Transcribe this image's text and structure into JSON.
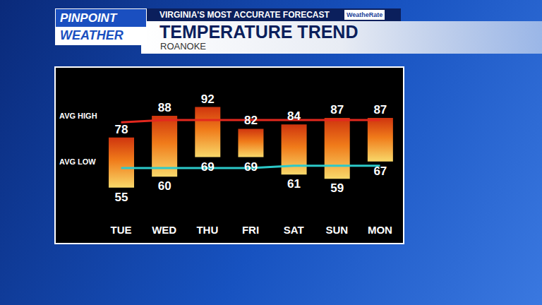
{
  "header": {
    "logo": [
      "PINPOINT",
      "WEATHER"
    ],
    "tagline": "VIRGINIA'S MOST ACCURATE FORECAST",
    "badge": "WeatheRate"
  },
  "chart_data": {
    "type": "range_bar",
    "title": "TEMPERATURE TREND",
    "subtitle": "ROANOKE",
    "categories": [
      "TUE",
      "WED",
      "THU",
      "FRI",
      "SAT",
      "SUN",
      "MON"
    ],
    "ylim": [
      40,
      110
    ],
    "tick_labels": "x",
    "grid": false,
    "data_labels": true,
    "series": [
      {
        "type": "bar",
        "color": "#f07b1a",
        "values": [
          78,
          88,
          92,
          82,
          84,
          87,
          87
        ],
        "low": [
          55,
          60,
          69,
          69,
          61,
          59,
          67
        ]
      },
      {
        "type": "line",
        "name": "AVG HIGH",
        "color": "#e3281e",
        "values": [
          85,
          86,
          86,
          86,
          86,
          86,
          86
        ]
      },
      {
        "type": "line",
        "name": "AVG LOW",
        "color": "#2cc9c9",
        "values": [
          64,
          64,
          64,
          64,
          65,
          65,
          65
        ]
      }
    ]
  }
}
